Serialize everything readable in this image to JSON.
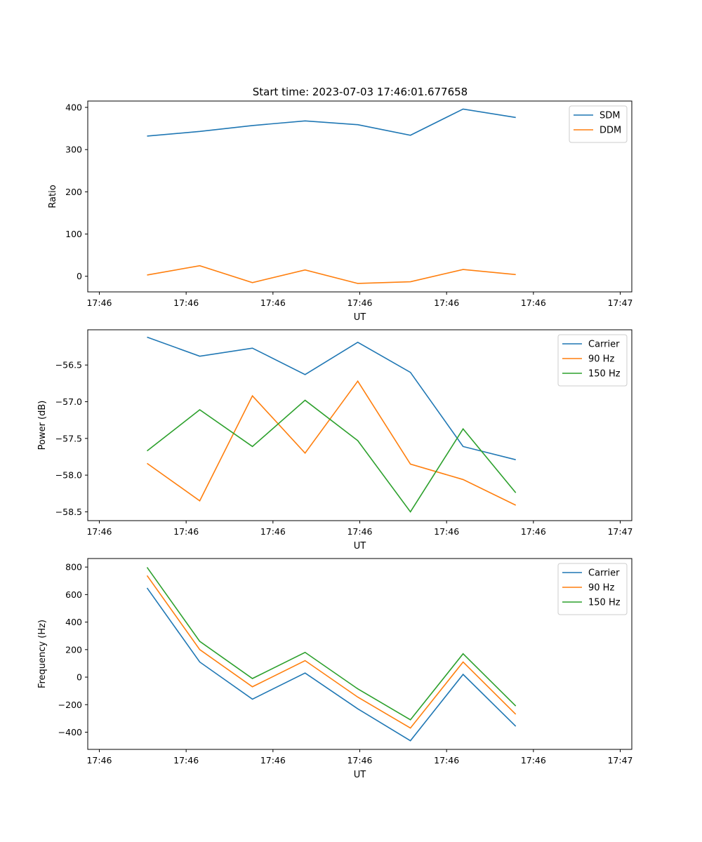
{
  "figure_title": "Start time: 2023-07-03 17:46:01.677658",
  "chart_data": [
    {
      "type": "line",
      "title": "Start time: 2023-07-03 17:46:01.677658",
      "xlabel": "UT",
      "ylabel": "Ratio",
      "x_tick_labels": [
        "17:46",
        "17:46",
        "17:46",
        "17:46",
        "17:46",
        "17:46",
        "17:47"
      ],
      "x_points": [
        1,
        2,
        3,
        4,
        5,
        6,
        7,
        8
      ],
      "xlim": [
        -0.2,
        9.2
      ],
      "y_ticks": [
        0,
        100,
        200,
        300,
        400
      ],
      "y_tick_labels": [
        "0",
        "100",
        "200",
        "300",
        "400"
      ],
      "ylim": [
        -37,
        415
      ],
      "grid": false,
      "legend_position": "top-right",
      "series": [
        {
          "name": "SDM",
          "color": "#1f77b4",
          "values": [
            332,
            343,
            357,
            368,
            359,
            334,
            396,
            376
          ]
        },
        {
          "name": "DDM",
          "color": "#ff7f0e",
          "values": [
            3,
            25,
            -15,
            15,
            -17,
            -13,
            16,
            4
          ]
        }
      ]
    },
    {
      "type": "line",
      "title": "",
      "xlabel": "UT",
      "ylabel": "Power (dB)",
      "x_tick_labels": [
        "17:46",
        "17:46",
        "17:46",
        "17:46",
        "17:46",
        "17:46",
        "17:47"
      ],
      "x_points": [
        1,
        2,
        3,
        4,
        5,
        6,
        7,
        8
      ],
      "xlim": [
        -0.2,
        9.2
      ],
      "y_ticks": [
        -58.5,
        -58.0,
        -57.5,
        -57.0,
        -56.5
      ],
      "y_tick_labels": [
        "−58.5",
        "−58.0",
        "−57.5",
        "−57.0",
        "−56.5"
      ],
      "ylim": [
        -58.62,
        -56.02
      ],
      "grid": false,
      "legend_position": "top-right",
      "series": [
        {
          "name": "Carrier",
          "color": "#1f77b4",
          "values": [
            -56.12,
            -56.38,
            -56.27,
            -56.63,
            -56.19,
            -56.6,
            -57.61,
            -57.79
          ]
        },
        {
          "name": "90 Hz",
          "color": "#ff7f0e",
          "values": [
            -57.84,
            -58.35,
            -56.92,
            -57.7,
            -56.72,
            -57.85,
            -58.06,
            -58.41
          ]
        },
        {
          "name": "150 Hz",
          "color": "#2ca02c",
          "values": [
            -57.67,
            -57.11,
            -57.61,
            -56.98,
            -57.53,
            -58.5,
            -57.37,
            -58.24
          ]
        }
      ]
    },
    {
      "type": "line",
      "title": "",
      "xlabel": "UT",
      "ylabel": "Frequency (Hz)",
      "x_tick_labels": [
        "17:46",
        "17:46",
        "17:46",
        "17:46",
        "17:46",
        "17:46",
        "17:47"
      ],
      "x_points": [
        1,
        2,
        3,
        4,
        5,
        6,
        7,
        8
      ],
      "xlim": [
        -0.2,
        9.2
      ],
      "y_ticks": [
        -400,
        -200,
        0,
        200,
        400,
        600,
        800
      ],
      "y_tick_labels": [
        "−400",
        "−200",
        "0",
        "200",
        "400",
        "600",
        "800"
      ],
      "ylim": [
        -525,
        862
      ],
      "grid": false,
      "legend_position": "top-right",
      "series": [
        {
          "name": "Carrier",
          "color": "#1f77b4",
          "values": [
            648,
            110,
            -160,
            30,
            -230,
            -462,
            20,
            -357
          ]
        },
        {
          "name": "90 Hz",
          "color": "#ff7f0e",
          "values": [
            738,
            200,
            -70,
            120,
            -145,
            -370,
            110,
            -270
          ]
        },
        {
          "name": "150 Hz",
          "color": "#2ca02c",
          "values": [
            798,
            260,
            -10,
            180,
            -85,
            -310,
            170,
            -210
          ]
        }
      ]
    }
  ]
}
